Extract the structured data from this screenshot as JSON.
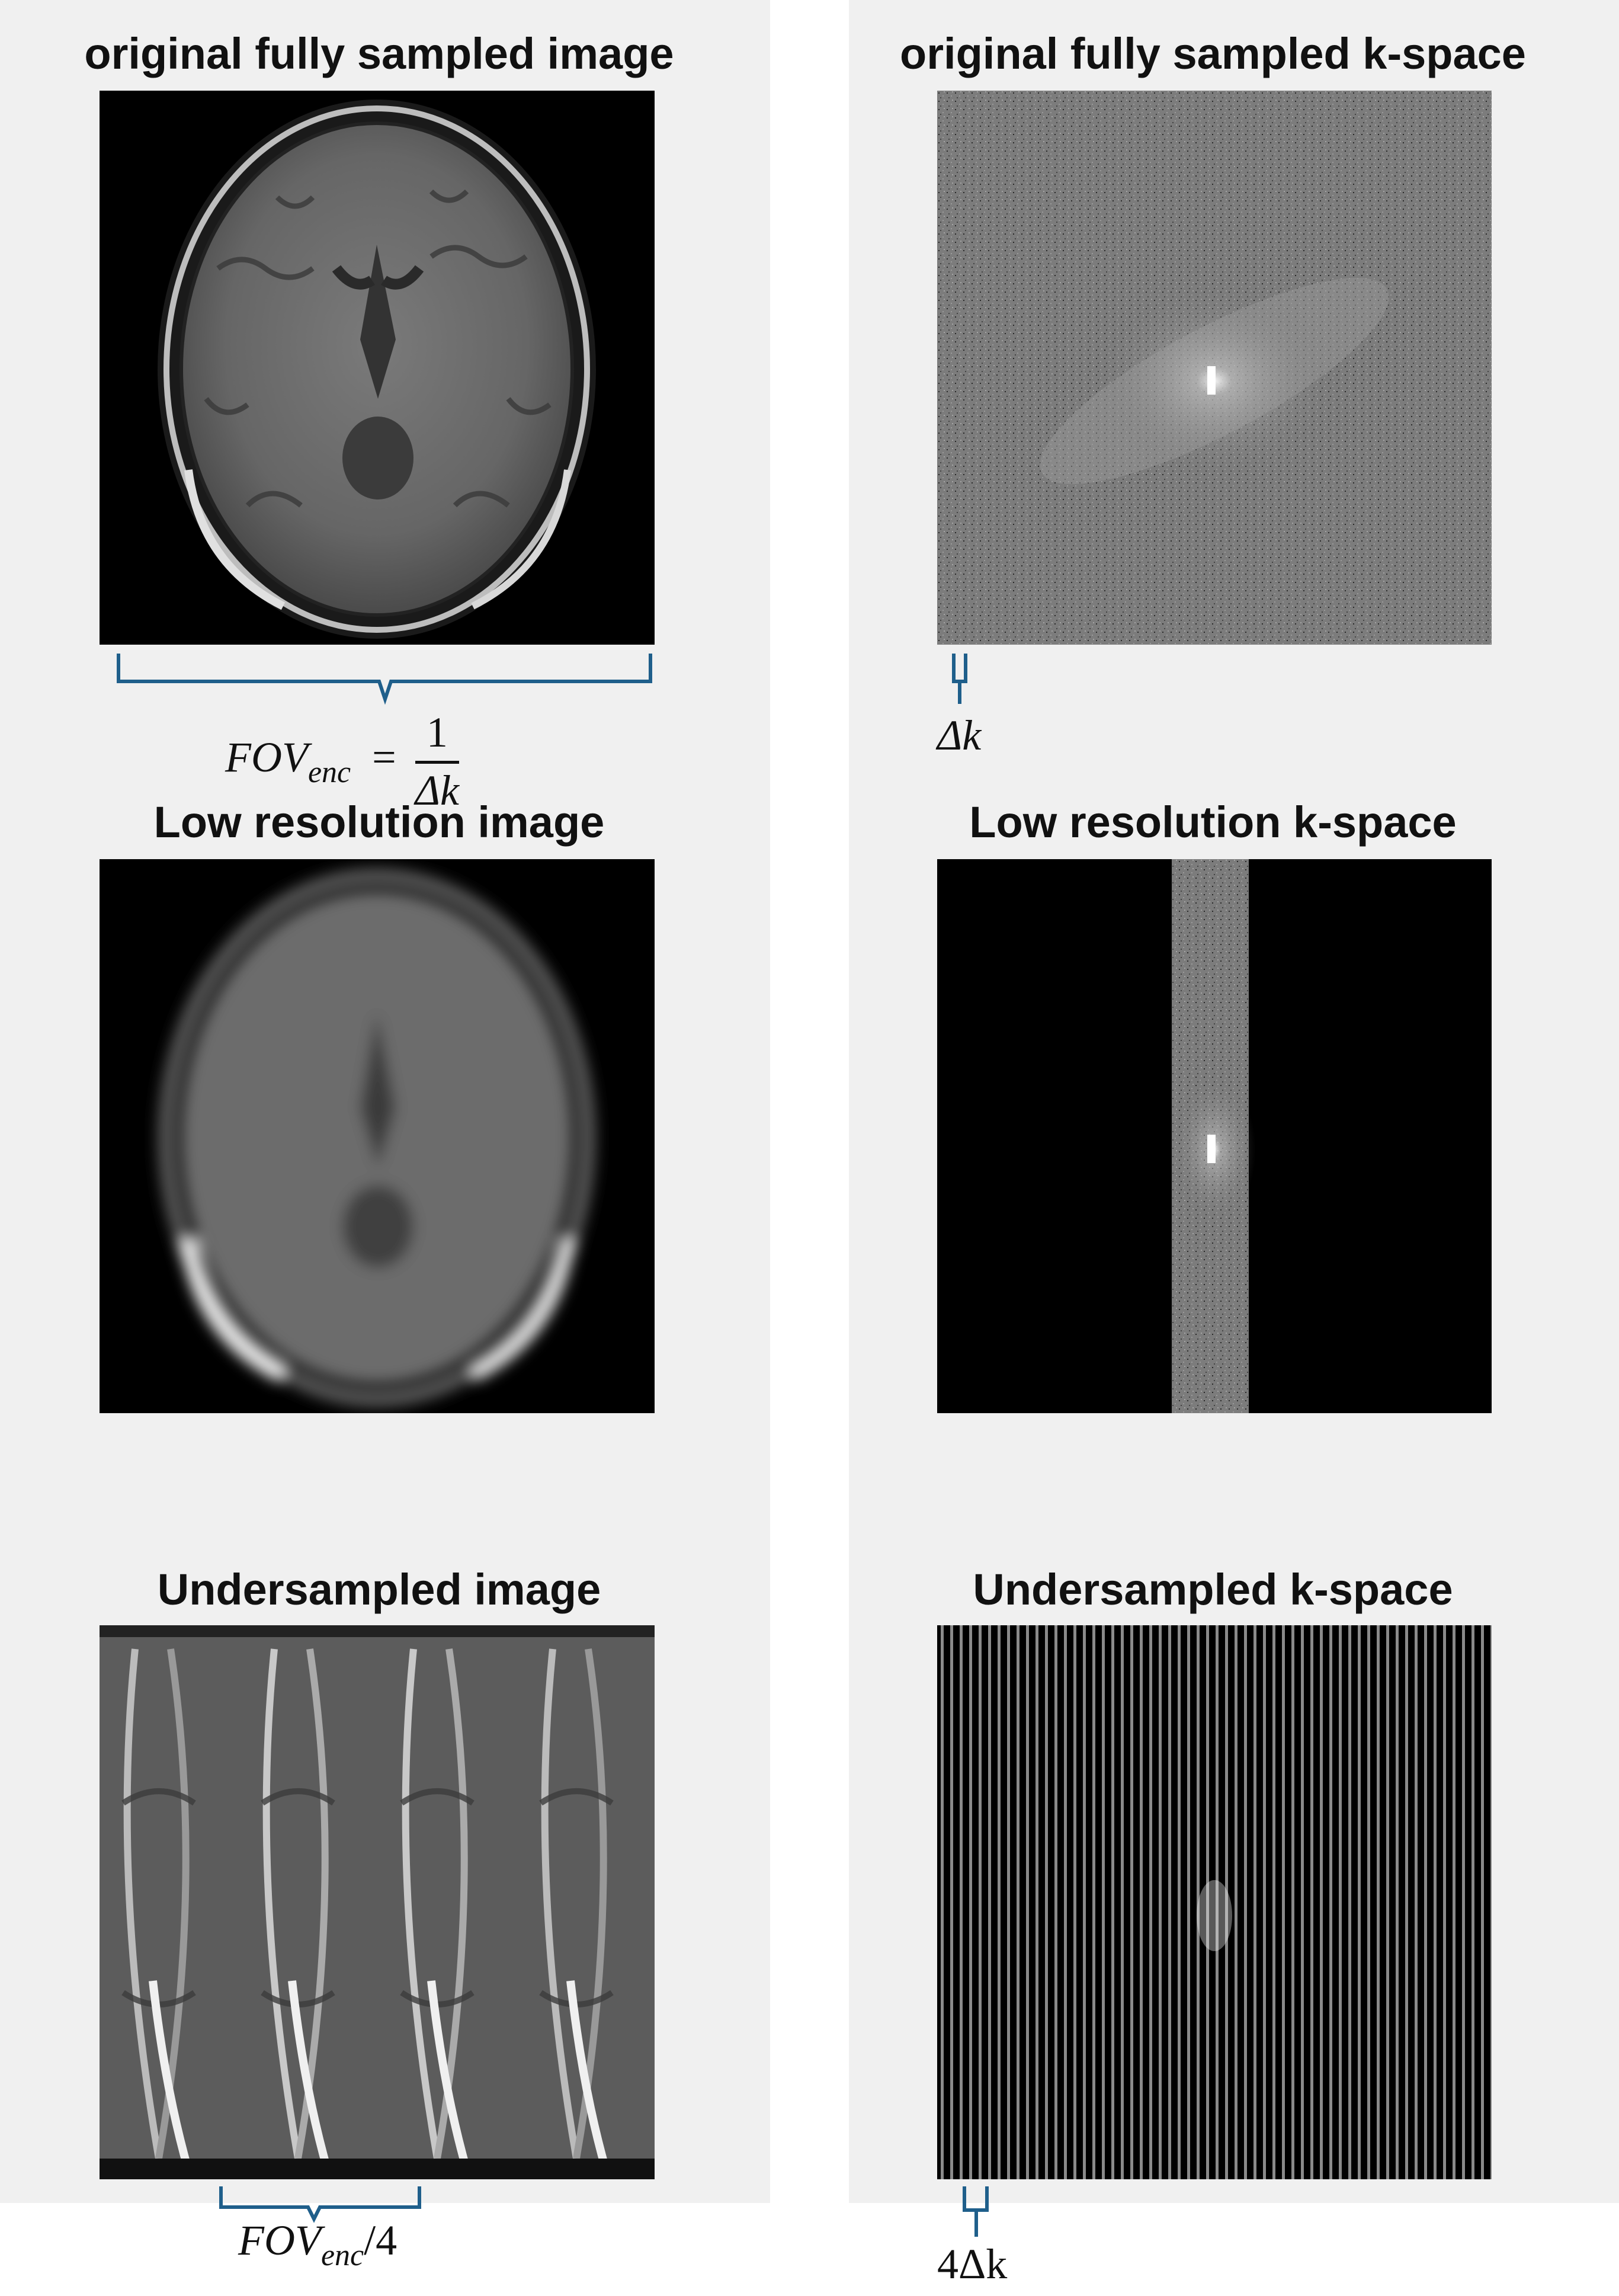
{
  "panels": {
    "left": {
      "background": "#f0f0f0"
    },
    "right": {
      "background": "#f0f0f0"
    }
  },
  "rows": [
    {
      "image_title": "original fully sampled image",
      "kspace_title": "original fully sampled k-space"
    },
    {
      "image_title": "Low resolution image",
      "kspace_title": "Low resolution k-space"
    },
    {
      "image_title": "Undersampled image",
      "kspace_title": "Undersampled k-space"
    }
  ],
  "annotations": {
    "fov_formula": {
      "lhs": "FOV",
      "lhs_sub": "enc",
      "equals": "=",
      "numerator": "1",
      "denominator": "Δk"
    },
    "delta_k": "Δk",
    "fov_quarter": {
      "main": "FOV",
      "sub": "enc",
      "suffix": "/4"
    },
    "four_delta_k": "4Δk",
    "bracket_color": "#1f5f8b"
  }
}
